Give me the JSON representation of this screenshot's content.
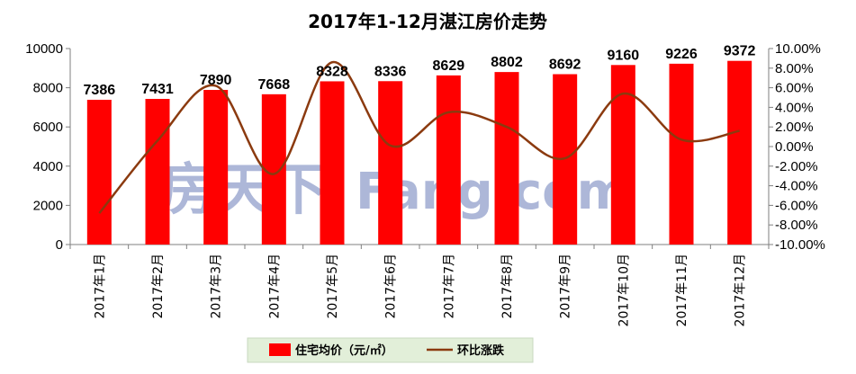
{
  "chart_data": {
    "type": "bar",
    "title": "2017年1-12月湛江房价走势",
    "categories": [
      "2017年1月",
      "2017年2月",
      "2017年3月",
      "2017年4月",
      "2017年5月",
      "2017年6月",
      "2017年7月",
      "2017年8月",
      "2017年9月",
      "2017年10月",
      "2017年11月",
      "2017年12月"
    ],
    "series": [
      {
        "name": "住宅均价（元/㎡）",
        "type": "bar",
        "axis": "left",
        "color": "#ff0000",
        "values": [
          7386,
          7431,
          7890,
          7668,
          8328,
          8336,
          8629,
          8802,
          8692,
          9160,
          9226,
          9372
        ],
        "data_labels": [
          "7386",
          "7431",
          "7890",
          "7668",
          "8328",
          "8336",
          "8629",
          "8802",
          "8692",
          "9160",
          "9226",
          "9372"
        ]
      },
      {
        "name": "环比涨跌",
        "type": "line",
        "axis": "right",
        "color": "#8b3a0f",
        "smooth": true,
        "values": [
          -6.8,
          0.6,
          6.2,
          -2.8,
          8.6,
          0.1,
          3.5,
          2.0,
          -1.2,
          5.4,
          0.7,
          1.6
        ]
      }
    ],
    "y_left": {
      "ylim": [
        0,
        10000
      ],
      "ticks": [
        "0",
        "2000",
        "4000",
        "6000",
        "8000",
        "10000"
      ]
    },
    "y_right": {
      "ylim": [
        -10,
        10
      ],
      "ticks": [
        "-10.00%",
        "-8.00%",
        "-6.00%",
        "-4.00%",
        "-2.00%",
        "0.00%",
        "2.00%",
        "4.00%",
        "6.00%",
        "8.00%",
        "10.00%"
      ]
    },
    "grid": false,
    "legend_position": "bottom",
    "legend_background": "#e2efd9",
    "watermark": "房天下Fang.com"
  }
}
